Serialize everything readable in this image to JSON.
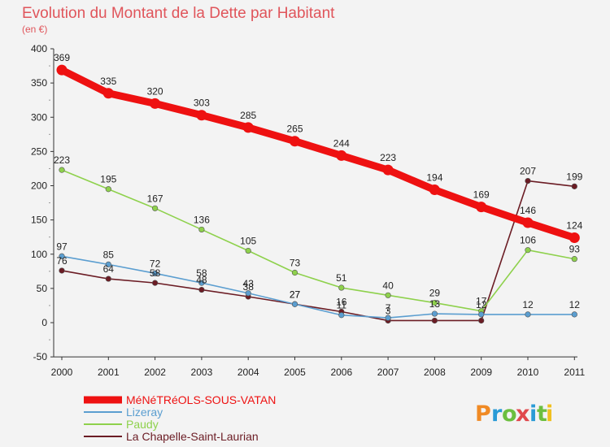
{
  "chart_data": {
    "type": "line",
    "title": "Evolution du Montant de la Dette par Habitant",
    "subtitle": "(en €)",
    "x": [
      "2000",
      "2001",
      "2002",
      "2003",
      "2004",
      "2005",
      "2006",
      "2007",
      "2008",
      "2009",
      "2010",
      "2011"
    ],
    "ylim": [
      -50,
      400
    ],
    "yticks": [
      -50,
      0,
      50,
      100,
      150,
      200,
      250,
      300,
      350,
      400
    ],
    "grid": false,
    "legend_position": "bottom-left",
    "series": [
      {
        "name": "La Chapelle-Saint-Laurian",
        "color": "#6b1c24",
        "values": [
          76,
          64,
          58,
          48,
          38,
          27,
          16,
          3,
          3,
          3,
          207,
          199
        ],
        "labels": [
          "76",
          "64",
          "58",
          "48",
          "38",
          "27",
          "16",
          "3",
          "",
          "",
          "207",
          "199"
        ]
      },
      {
        "name": "Paudy",
        "color": "#8ed14c",
        "values": [
          223,
          195,
          167,
          136,
          105,
          73,
          51,
          40,
          29,
          17,
          106,
          93
        ],
        "labels": [
          "223",
          "195",
          "167",
          "136",
          "105",
          "73",
          "51",
          "40",
          "29",
          "17",
          "106",
          "93"
        ]
      },
      {
        "name": "Lizeray",
        "color": "#5b9ed0",
        "values": [
          97,
          85,
          72,
          58,
          43,
          27,
          11,
          7,
          13,
          12,
          12,
          12
        ],
        "labels": [
          "97",
          "85",
          "72",
          "58",
          "43",
          "27",
          "11",
          "7",
          "13",
          "12",
          "12",
          "12"
        ]
      },
      {
        "name": "MéNéTRéOLS-SOUS-VATAN",
        "color": "#ee1111",
        "values": [
          369,
          335,
          320,
          303,
          285,
          265,
          244,
          223,
          194,
          169,
          146,
          124
        ],
        "labels": [
          "369",
          "335",
          "320",
          "303",
          "285",
          "265",
          "244",
          "223",
          "194",
          "169",
          "146",
          "124"
        ]
      }
    ]
  },
  "legend": {
    "items": [
      {
        "name": "MéNéTRéOLS-SOUS-VATAN",
        "color": "#ee1111"
      },
      {
        "name": "Lizeray",
        "color": "#5b9ed0"
      },
      {
        "name": "Paudy",
        "color": "#8ed14c"
      },
      {
        "name": "La Chapelle-Saint-Laurian",
        "color": "#6b1c24"
      }
    ]
  },
  "brand": {
    "letters": [
      "P",
      "r",
      "o",
      "x",
      "i",
      "t",
      "i"
    ],
    "colors": [
      "#f08a24",
      "#2a9bd6",
      "#6cbf3f",
      "#e0484d",
      "#2a9bd6",
      "#6cbf3f",
      "#f0c020"
    ]
  }
}
